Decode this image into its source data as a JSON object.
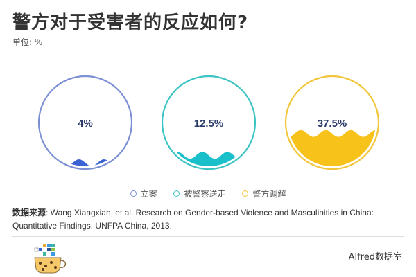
{
  "header": {
    "title": "警方对于受害者的反应如何?",
    "unit": "单位: %"
  },
  "chart_data": {
    "type": "liquid-gauge",
    "title": "警方对于受害者的反应如何?",
    "unit": "%",
    "series": [
      {
        "name": "立案",
        "value": 4,
        "label": "4%",
        "color": "#7b8fd4",
        "fill": "#3a63d4"
      },
      {
        "name": "被警察送走",
        "value": 12.5,
        "label": "12.5%",
        "color": "#3cc4c4",
        "fill": "#19bfc9"
      },
      {
        "name": "警方调解",
        "value": 37.5,
        "label": "37.5%",
        "color": "#f2c53a",
        "fill": "#f7c31a"
      }
    ],
    "legend": "bottom-center"
  },
  "source": {
    "label": "数据来源",
    "text": ": Wang Xiangxian, et al. Research on Gender-based Violence and Masculinities in China: Quantitative Findings. UNFPA China, 2013."
  },
  "footer": {
    "brand": "Alfred数据室",
    "logo_icon": "data-gauge-logo-icon"
  }
}
